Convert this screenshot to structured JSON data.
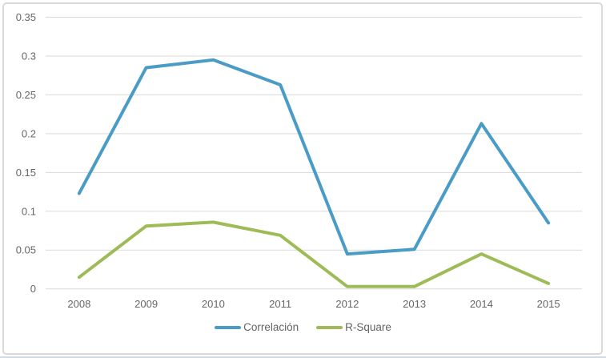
{
  "chart_data": {
    "type": "line",
    "title": "",
    "categories": [
      "2008",
      "2009",
      "2010",
      "2011",
      "2012",
      "2013",
      "2014",
      "2015"
    ],
    "series": [
      {
        "name": "Correlación",
        "color": "#4a9cc7",
        "values": [
          0.123,
          0.285,
          0.295,
          0.263,
          0.045,
          0.051,
          0.213,
          0.085
        ]
      },
      {
        "name": "R-Square",
        "color": "#9fbb58",
        "values": [
          0.015,
          0.081,
          0.086,
          0.069,
          0.003,
          0.003,
          0.045,
          0.007
        ]
      }
    ],
    "xlabel": "",
    "ylabel": "",
    "ylim": [
      0,
      0.35
    ],
    "y_tick_labels": [
      "0",
      "0.05",
      "0.1",
      "0.15",
      "0.2",
      "0.25",
      "0.3",
      "0.35"
    ],
    "grid": true,
    "legend_position": "bottom"
  },
  "colors": {
    "grid": "#d9d9d9",
    "axis_text": "#666666",
    "frame_border": "#d9d9d9",
    "background": "#ffffff"
  }
}
